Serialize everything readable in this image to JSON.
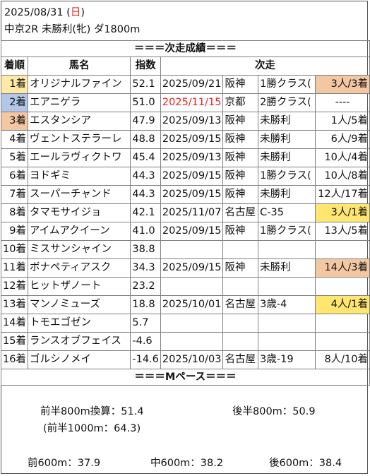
{
  "header": {
    "date_prefix": "2025/08/31 (",
    "weekday": "日",
    "date_suffix": ")",
    "race_info": "中京2R 未勝利(牝) ダ1800m"
  },
  "sections": {
    "results_title": "＝＝＝次走成績＝＝＝",
    "pace_title": "＝＝＝Mペース＝＝＝"
  },
  "columns": {
    "rank": "着順",
    "name": "馬名",
    "index": "指数",
    "next": "次走"
  },
  "colors": {
    "gold": "#ffe9a6",
    "blue": "#b4c7e7",
    "tan": "#f4c7a3",
    "yellow": "#ffe671",
    "red_text": "#e8251e"
  },
  "rows": [
    {
      "rank": "1着",
      "name": "オリジナルファイン",
      "index": "52.1",
      "date": "2025/09/21",
      "place": "阪神",
      "class": "1勝クラス(",
      "result": "3人/3着"
    },
    {
      "rank": "2着",
      "name": "エアニゲラ",
      "index": "51.0",
      "date": "2025/11/15",
      "place": "京都",
      "class": "2勝クラス(",
      "result": "----"
    },
    {
      "rank": "3着",
      "name": "エスタンシア",
      "index": "47.9",
      "date": "2025/09/13",
      "place": "阪神",
      "class": "未勝利",
      "result": "1人/5着"
    },
    {
      "rank": "4着",
      "name": "ヴェントステラーレ",
      "index": "48.8",
      "date": "2025/09/15",
      "place": "阪神",
      "class": "未勝利",
      "result": "6人/9着"
    },
    {
      "rank": "5着",
      "name": "エールラヴィクトワ",
      "index": "45.4",
      "date": "2025/09/13",
      "place": "阪神",
      "class": "未勝利",
      "result": "10人/4着"
    },
    {
      "rank": "6着",
      "name": "ヨドギミ",
      "index": "44.3",
      "date": "2025/09/15",
      "place": "阪神",
      "class": "1勝クラス(",
      "result": "10人/8着"
    },
    {
      "rank": "7着",
      "name": "スーパーチャンド",
      "index": "44.3",
      "date": "2025/09/15",
      "place": "阪神",
      "class": "未勝利",
      "result": "12人/17着"
    },
    {
      "rank": "8着",
      "name": "タマモサイジョ",
      "index": "42.1",
      "date": "2025/11/07",
      "place": "名古屋",
      "class": "C-35",
      "result": "3人/1着"
    },
    {
      "rank": "9着",
      "name": "アイムアクイーン",
      "index": "41.0",
      "date": "2025/09/15",
      "place": "阪神",
      "class": "1勝クラス(",
      "result": "13人/5着"
    },
    {
      "rank": "10着",
      "name": "ミスサンシャイン",
      "index": "38.8",
      "date": "",
      "place": "",
      "class": "",
      "result": ""
    },
    {
      "rank": "11着",
      "name": "ボナペティアスク",
      "index": "34.3",
      "date": "2025/09/15",
      "place": "阪神",
      "class": "未勝利",
      "result": "14人/3着"
    },
    {
      "rank": "12着",
      "name": "ヒットザノート",
      "index": "23.2",
      "date": "",
      "place": "",
      "class": "",
      "result": ""
    },
    {
      "rank": "13着",
      "name": "マンノミューズ",
      "index": "18.8",
      "date": "2025/10/01",
      "place": "名古屋",
      "class": "3歳-4",
      "result": "4人/1着"
    },
    {
      "rank": "14着",
      "name": "トモエゴゼン",
      "index": "5.7",
      "date": "",
      "place": "",
      "class": "",
      "result": ""
    },
    {
      "rank": "15着",
      "name": "ランスオブフェイス",
      "index": "-4.6",
      "date": "",
      "place": "",
      "class": "",
      "result": ""
    },
    {
      "rank": "16着",
      "name": "ゴルシノメイ",
      "index": "-14.6",
      "date": "2025/10/03",
      "place": "名古屋",
      "class": "3歳-19",
      "result": "8人/10着"
    }
  ],
  "pace": {
    "first800": "前半800m換算：51.4",
    "last800": "後半800m：50.9",
    "first1000": "(前半1000m：64.3)",
    "front600": "前600m：37.9",
    "mid600": "中600m：38.2",
    "back600": "後600m：38.4"
  }
}
